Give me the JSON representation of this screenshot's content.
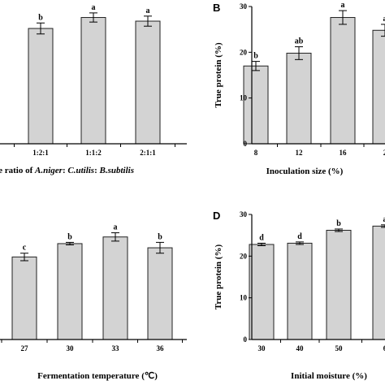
{
  "colors": {
    "bar_fill": "#d3d3d3",
    "bar_stroke": "#222222",
    "axis": "#000000"
  },
  "chart_data": [
    {
      "panel": "",
      "type": "bar",
      "xlabel_parts": [
        {
          "text": "he ratio of ",
          "italic": false
        },
        {
          "text": "A.niger",
          "italic": true
        },
        {
          "text": ": ",
          "italic": false
        },
        {
          "text": "C.utilis",
          "italic": true
        },
        {
          "text": ": ",
          "italic": false
        },
        {
          "text": "B.subtilis",
          "italic": true
        }
      ],
      "ylabel": "",
      "ylim": [
        0,
        30
      ],
      "categories": [
        "1:2:1",
        "1:1:2",
        "2:1:1"
      ],
      "values": [
        25.2,
        27.6,
        26.8
      ],
      "errors": [
        1.2,
        1.0,
        1.1
      ],
      "letters": [
        "b",
        "a",
        "a"
      ]
    },
    {
      "panel": "B",
      "type": "bar",
      "xlabel": "Inoculation size (%)",
      "ylabel": "True protein (%)",
      "ylim": [
        0,
        30
      ],
      "yticks": [
        "0",
        "10",
        "20",
        "30"
      ],
      "categories": [
        "8",
        "12",
        "16",
        "2"
      ],
      "values": [
        17.0,
        19.8,
        27.6,
        24.8
      ],
      "errors": [
        1.0,
        1.4,
        1.5,
        1.3
      ],
      "letters": [
        "b",
        "ab",
        "a",
        "a"
      ]
    },
    {
      "panel": "",
      "type": "bar",
      "xlabel": "Fermentation temperature (℃)",
      "ylabel": "",
      "ylim": [
        0,
        30
      ],
      "categories": [
        "27",
        "30",
        "33",
        "36"
      ],
      "values": [
        19.8,
        23.0,
        24.6,
        22.0
      ],
      "errors": [
        0.9,
        0.3,
        1.0,
        1.3
      ],
      "letters": [
        "c",
        "b",
        "a",
        "b"
      ]
    },
    {
      "panel": "D",
      "type": "bar",
      "xlabel": "Initial moisture (%)",
      "ylabel": "True protein (%)",
      "ylim": [
        0,
        30
      ],
      "yticks": [
        "0",
        "10",
        "20",
        "30"
      ],
      "categories": [
        "30",
        "40",
        "50",
        "6"
      ],
      "values": [
        22.8,
        23.1,
        26.2,
        27.2
      ],
      "errors": [
        0.3,
        0.3,
        0.3,
        0.3
      ],
      "letters": [
        "d",
        "d",
        "b",
        "a"
      ]
    }
  ]
}
